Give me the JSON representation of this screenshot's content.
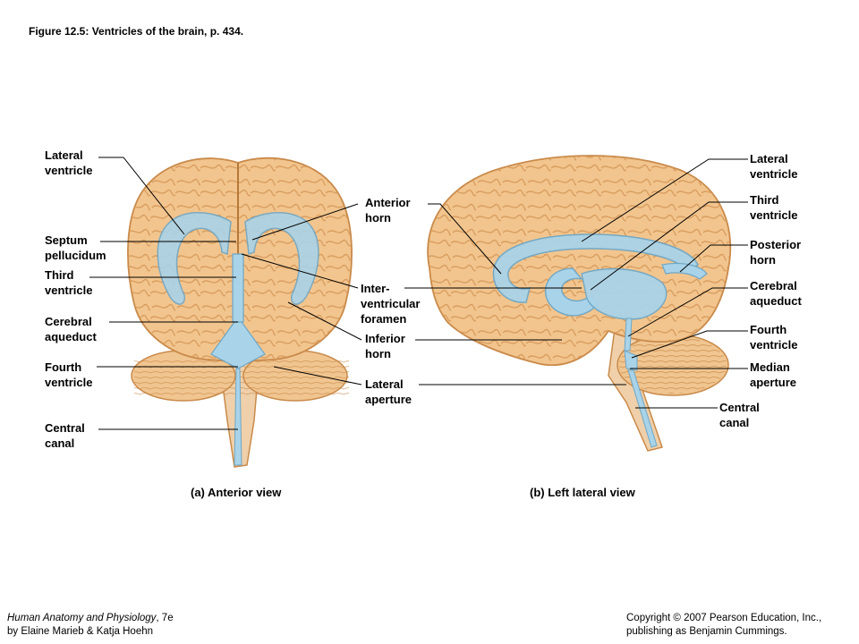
{
  "figure_title": "Figure 12.5: Ventricles of the brain, p. 434.",
  "labels_anterior": {
    "lateral_ventricle": "Lateral\nventricle",
    "septum_pellucidum": "Septum\npellucidum",
    "third_ventricle": "Third\nventricle",
    "cerebral_aqueduct": "Cerebral\naqueduct",
    "fourth_ventricle": "Fourth\nventricle",
    "central_canal": "Central\ncanal"
  },
  "labels_middle": {
    "anterior_horn": "Anterior\nhorn",
    "interventricular_foramen": "Inter-\nventricular\nforamen",
    "inferior_horn": "Inferior\nhorn",
    "lateral_aperture": "Lateral\naperture"
  },
  "labels_lateral": {
    "lateral_ventricle": "Lateral\nventricle",
    "third_ventricle": "Third\nventricle",
    "posterior_horn": "Posterior\nhorn",
    "cerebral_aqueduct": "Cerebral\naqueduct",
    "fourth_ventricle": "Fourth\nventricle",
    "median_aperture": "Median\naperture",
    "central_canal": "Central\ncanal"
  },
  "captions": {
    "anterior": "(a) Anterior view",
    "lateral": "(b) Left lateral view"
  },
  "footer": {
    "book_title": "Human Anatomy and Physiology",
    "edition": ", 7e",
    "authors": "by Elaine Marieb & Katja Hoehn",
    "copyright_line1": "Copyright © 2007 Pearson Education, Inc.,",
    "copyright_line2": "publishing as Benjamin Cummings."
  },
  "colors": {
    "brain_fill": "#f2c58e",
    "brain_stroke": "#c98a4a",
    "ventricle_fill": "#a9d3e8",
    "ventricle_stroke": "#6fa7c6",
    "cerebellum_fill": "#f0c590",
    "stem_fill": "#efd0aa"
  }
}
